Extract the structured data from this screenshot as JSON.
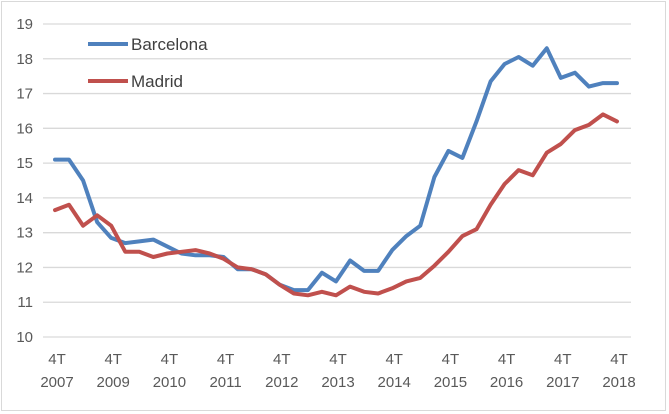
{
  "chart_data": {
    "type": "line",
    "title": "",
    "xlabel": "",
    "ylabel": "",
    "ylim": [
      10,
      19
    ],
    "yticks": [
      10,
      11,
      12,
      13,
      14,
      15,
      16,
      17,
      18,
      19
    ],
    "grid": true,
    "legend_position": "top-left",
    "x_tick_labels": [
      {
        "q": "4T",
        "year": "2007"
      },
      {
        "q": "4T",
        "year": "2009"
      },
      {
        "q": "4T",
        "year": "2010"
      },
      {
        "q": "4T",
        "year": "2011"
      },
      {
        "q": "4T",
        "year": "2012"
      },
      {
        "q": "4T",
        "year": "2013"
      },
      {
        "q": "4T",
        "year": "2014"
      },
      {
        "q": "4T",
        "year": "2015"
      },
      {
        "q": "4T",
        "year": "2016"
      },
      {
        "q": "4T",
        "year": "2017"
      },
      {
        "q": "4T",
        "year": "2018"
      }
    ],
    "series": [
      {
        "name": "Barcelona",
        "color": "#4f81bd",
        "values": [
          15.1,
          15.1,
          14.5,
          13.3,
          12.85,
          12.7,
          12.75,
          12.8,
          12.6,
          12.4,
          12.35,
          12.35,
          12.3,
          11.95,
          11.95,
          11.8,
          11.5,
          11.35,
          11.35,
          11.85,
          11.6,
          12.2,
          11.9,
          11.9,
          12.5,
          12.9,
          13.2,
          14.6,
          15.35,
          15.15,
          16.2,
          17.35,
          17.85,
          18.05,
          17.8,
          18.3,
          17.45,
          17.6,
          17.2,
          17.3,
          17.3
        ]
      },
      {
        "name": "Madrid",
        "color": "#c0504d",
        "values": [
          13.65,
          13.8,
          13.2,
          13.5,
          13.2,
          12.45,
          12.45,
          12.3,
          12.4,
          12.45,
          12.5,
          12.4,
          12.25,
          12.0,
          11.95,
          11.8,
          11.5,
          11.25,
          11.2,
          11.3,
          11.2,
          11.45,
          11.3,
          11.25,
          11.4,
          11.6,
          11.7,
          12.05,
          12.45,
          12.9,
          13.1,
          13.8,
          14.4,
          14.8,
          14.65,
          15.3,
          15.55,
          15.95,
          16.1,
          16.4,
          16.2
        ]
      }
    ]
  }
}
